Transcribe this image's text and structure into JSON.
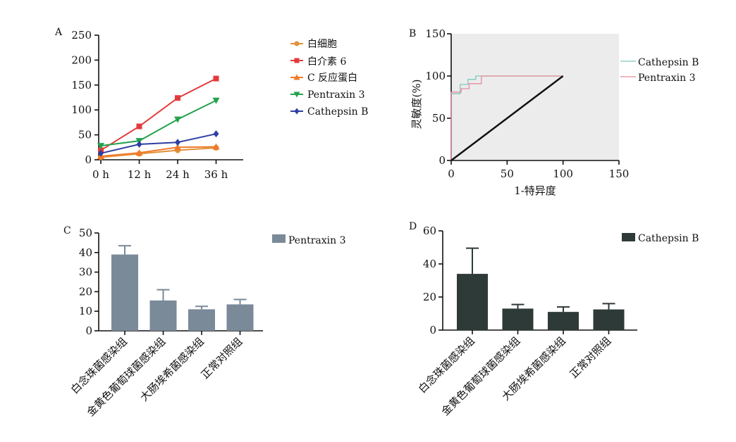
{
  "chart_data": [
    {
      "panel": "A",
      "type": "line",
      "categories": [
        "0 h",
        "12 h",
        "24 h",
        "36 h"
      ],
      "ylim": [
        0,
        250
      ],
      "yticks": [
        0,
        50,
        100,
        150,
        200,
        250
      ],
      "series": [
        {
          "name": "白细胞",
          "color": "#e0913a",
          "marker": "circle",
          "values": [
            5,
            12,
            19,
            24
          ]
        },
        {
          "name": "白介素 6",
          "color": "#e23b3b",
          "marker": "square",
          "values": [
            19,
            67,
            124,
            163
          ]
        },
        {
          "name": "C 反应蛋白",
          "color": "#f07a2a",
          "marker": "triangle-up",
          "values": [
            7,
            14,
            25,
            26
          ]
        },
        {
          "name": "Pentraxin 3",
          "color": "#23a24d",
          "marker": "triangle-down",
          "values": [
            28,
            38,
            81,
            119
          ]
        },
        {
          "name": "Cathepsin B",
          "color": "#2f3fa3",
          "marker": "diamond",
          "values": [
            13,
            31,
            35,
            52
          ]
        }
      ]
    },
    {
      "panel": "B",
      "type": "line",
      "xlabel": "1-特异度",
      "ylabel": "灵敏度(%)",
      "xlim": [
        0,
        150
      ],
      "ylim": [
        0,
        150
      ],
      "xticks": [
        0,
        50,
        100,
        150
      ],
      "yticks": [
        0,
        50,
        100,
        150
      ],
      "series": [
        {
          "name": "Cathepsin B",
          "color": "#7fc8bf",
          "x": [
            0,
            0,
            8,
            8,
            15,
            15,
            22,
            22,
            100
          ],
          "y": [
            0,
            79,
            79,
            90,
            90,
            96,
            96,
            100,
            100
          ]
        },
        {
          "name": "Pentraxin 3",
          "color": "#e58a9b",
          "x": [
            0,
            0,
            9,
            9,
            16,
            16,
            27,
            27,
            100
          ],
          "y": [
            0,
            81,
            81,
            85,
            85,
            91,
            91,
            100,
            100
          ]
        },
        {
          "name": "",
          "color": "#111111",
          "x": [
            0,
            100
          ],
          "y": [
            0,
            100
          ]
        }
      ]
    },
    {
      "panel": "C",
      "type": "bar",
      "categories": [
        "白念珠菌感染组",
        "金黄色葡萄球菌感染组",
        "大肠埃希菌感染组",
        "正常对照组"
      ],
      "ylim": [
        0,
        50
      ],
      "yticks": [
        0,
        10,
        20,
        30,
        40,
        50
      ],
      "series": [
        {
          "name": "Pentraxin 3",
          "color": "#7a8a99",
          "values": [
            39,
            15.5,
            11,
            13.5
          ],
          "errors": [
            4.5,
            5.5,
            1.5,
            2.5
          ]
        }
      ]
    },
    {
      "panel": "D",
      "type": "bar",
      "categories": [
        "白念珠菌感染组",
        "金黄色葡萄球菌感染组",
        "大肠埃希菌感染组",
        "正常对照组"
      ],
      "ylim": [
        0,
        60
      ],
      "yticks": [
        0,
        20,
        40,
        60
      ],
      "series": [
        {
          "name": "Cathepsin B",
          "color": "#2e3a38",
          "values": [
            34,
            13,
            11,
            12.5
          ],
          "errors": [
            15.5,
            2.5,
            3,
            3.5
          ]
        }
      ]
    }
  ]
}
